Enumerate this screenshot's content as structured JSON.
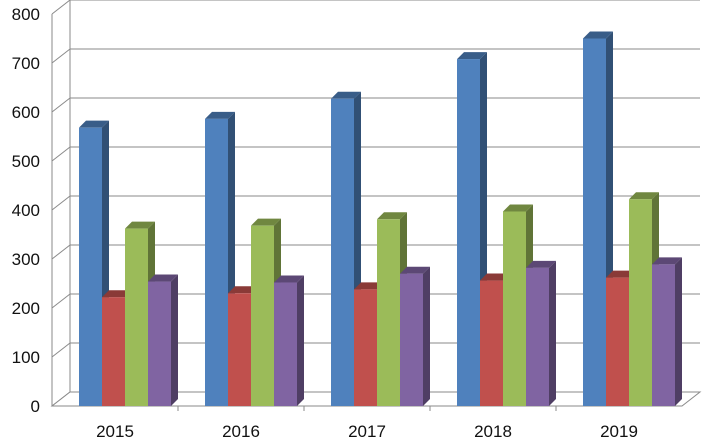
{
  "chart_data": {
    "type": "bar",
    "style": "3d-clustered-column",
    "categories": [
      "2015",
      "2016",
      "2017",
      "2018",
      "2019"
    ],
    "series": [
      {
        "color": "#4F81BD",
        "values": [
          568,
          586,
          627,
          708,
          750
        ]
      },
      {
        "color": "#C0504D",
        "values": [
          222,
          230,
          238,
          256,
          262
        ]
      },
      {
        "color": "#9BBB59",
        "values": [
          362,
          368,
          381,
          397,
          422
        ]
      },
      {
        "color": "#8064A2",
        "values": [
          254,
          252,
          270,
          282,
          289
        ]
      }
    ],
    "yticks": [
      "0",
      "100",
      "200",
      "300",
      "400",
      "500",
      "600",
      "700",
      "800"
    ],
    "ylim": [
      0,
      800
    ],
    "grid": true,
    "legend": "none",
    "title": "",
    "xlabel": "",
    "ylabel": ""
  }
}
